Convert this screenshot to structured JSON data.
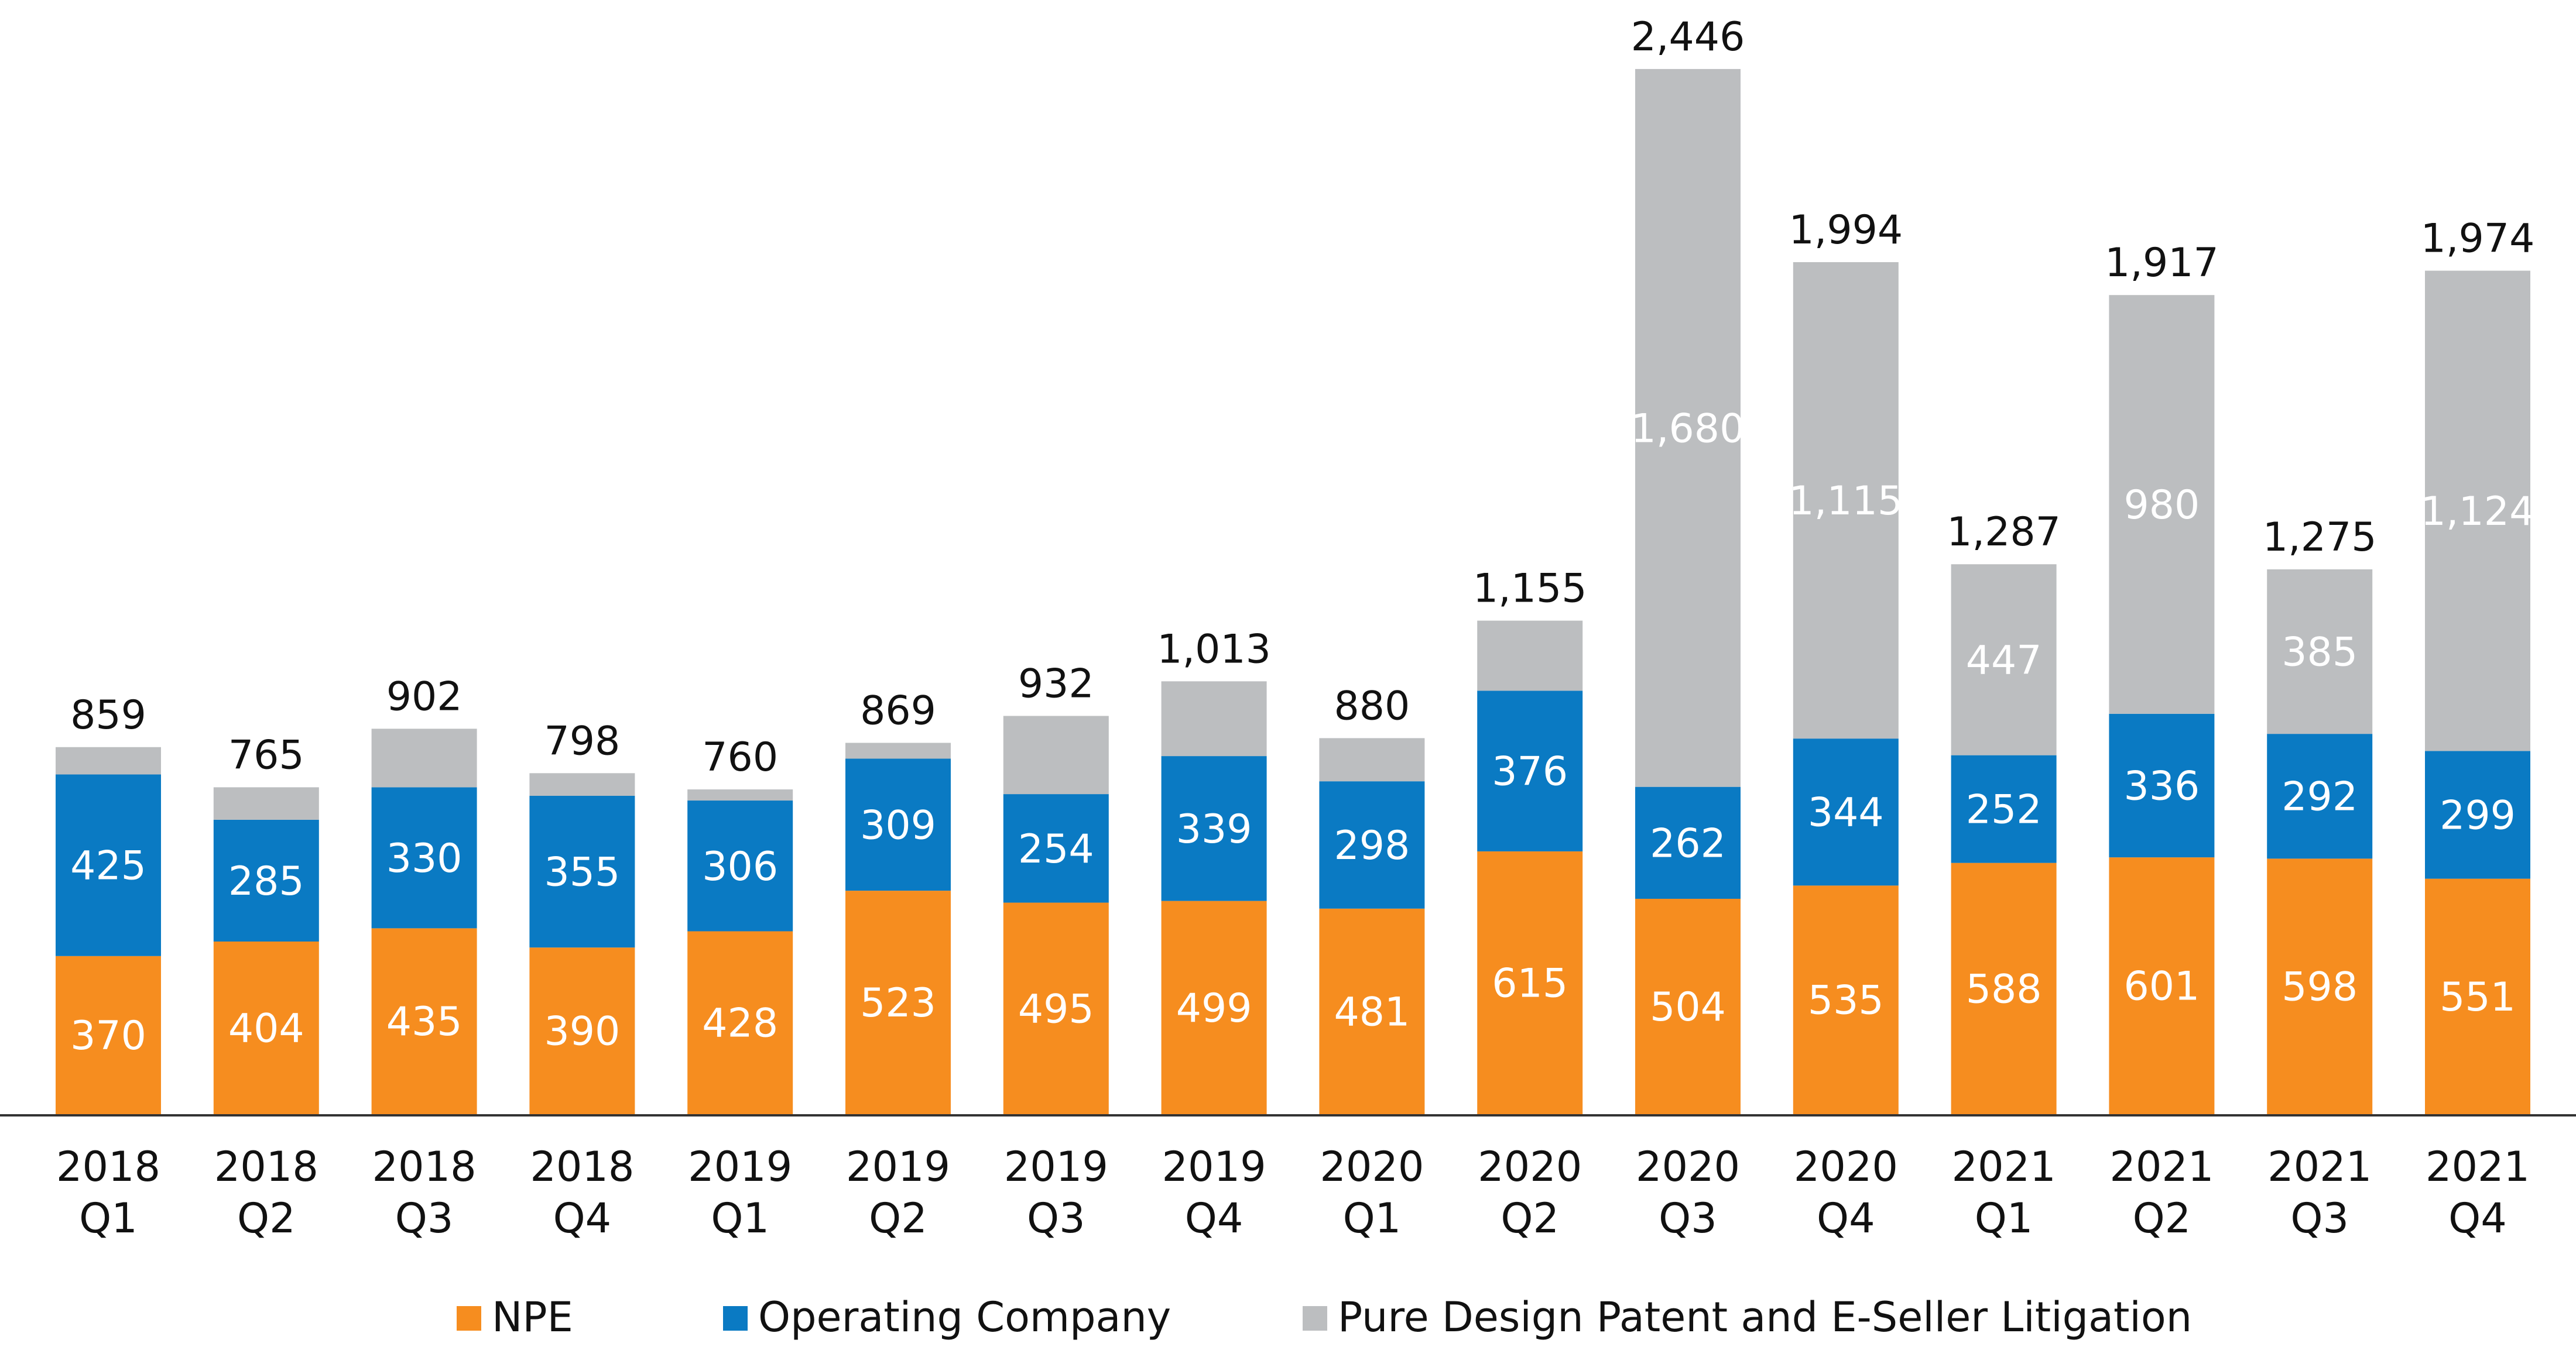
{
  "chart_data": {
    "type": "bar",
    "stacked": true,
    "categories": [
      [
        "2018",
        "Q1"
      ],
      [
        "2018",
        "Q2"
      ],
      [
        "2018",
        "Q3"
      ],
      [
        "2018",
        "Q4"
      ],
      [
        "2019",
        "Q1"
      ],
      [
        "2019",
        "Q2"
      ],
      [
        "2019",
        "Q3"
      ],
      [
        "2019",
        "Q4"
      ],
      [
        "2020",
        "Q1"
      ],
      [
        "2020",
        "Q2"
      ],
      [
        "2020",
        "Q3"
      ],
      [
        "2020",
        "Q4"
      ],
      [
        "2021",
        "Q1"
      ],
      [
        "2021",
        "Q2"
      ],
      [
        "2021",
        "Q3"
      ],
      [
        "2021",
        "Q4"
      ]
    ],
    "series": [
      {
        "name": "NPE",
        "color": "#F68D1F",
        "values": [
          370,
          404,
          435,
          390,
          428,
          523,
          495,
          499,
          481,
          615,
          504,
          535,
          588,
          601,
          598,
          551
        ],
        "labels": [
          "370",
          "404",
          "435",
          "390",
          "428",
          "523",
          "495",
          "499",
          "481",
          "615",
          "504",
          "535",
          "588",
          "601",
          "598",
          "551"
        ]
      },
      {
        "name": "Operating Company",
        "color": "#0A7AC3",
        "values": [
          425,
          285,
          330,
          355,
          306,
          309,
          254,
          339,
          298,
          376,
          262,
          344,
          252,
          336,
          292,
          299
        ],
        "labels": [
          "425",
          "285",
          "330",
          "355",
          "306",
          "309",
          "254",
          "339",
          "298",
          "376",
          "262",
          "344",
          "252",
          "336",
          "292",
          "299"
        ]
      },
      {
        "name": "Pure Design Patent and E-Seller Litigation",
        "color": "#BCBEC0",
        "values": [
          64,
          76,
          137,
          53,
          26,
          37,
          183,
          175,
          101,
          164,
          1680,
          1115,
          447,
          980,
          385,
          1124
        ],
        "labels": [
          "",
          "",
          "",
          "",
          "",
          "",
          "",
          "",
          "",
          "",
          "1,680",
          "1,115",
          "447",
          "980",
          "385",
          "1,124"
        ]
      }
    ],
    "totals": [
      859,
      765,
      902,
      798,
      760,
      869,
      932,
      1013,
      880,
      1155,
      2446,
      1994,
      1287,
      1917,
      1275,
      1974
    ],
    "total_labels": [
      "859",
      "765",
      "902",
      "798",
      "760",
      "869",
      "932",
      "1,013",
      "880",
      "1,155",
      "2,446",
      "1,994",
      "1,287",
      "1,917",
      "1,275",
      "1,974"
    ],
    "ylim": [
      0,
      2600
    ],
    "grid": false,
    "legend_position": "bottom",
    "title": "",
    "xlabel": "",
    "ylabel": ""
  }
}
